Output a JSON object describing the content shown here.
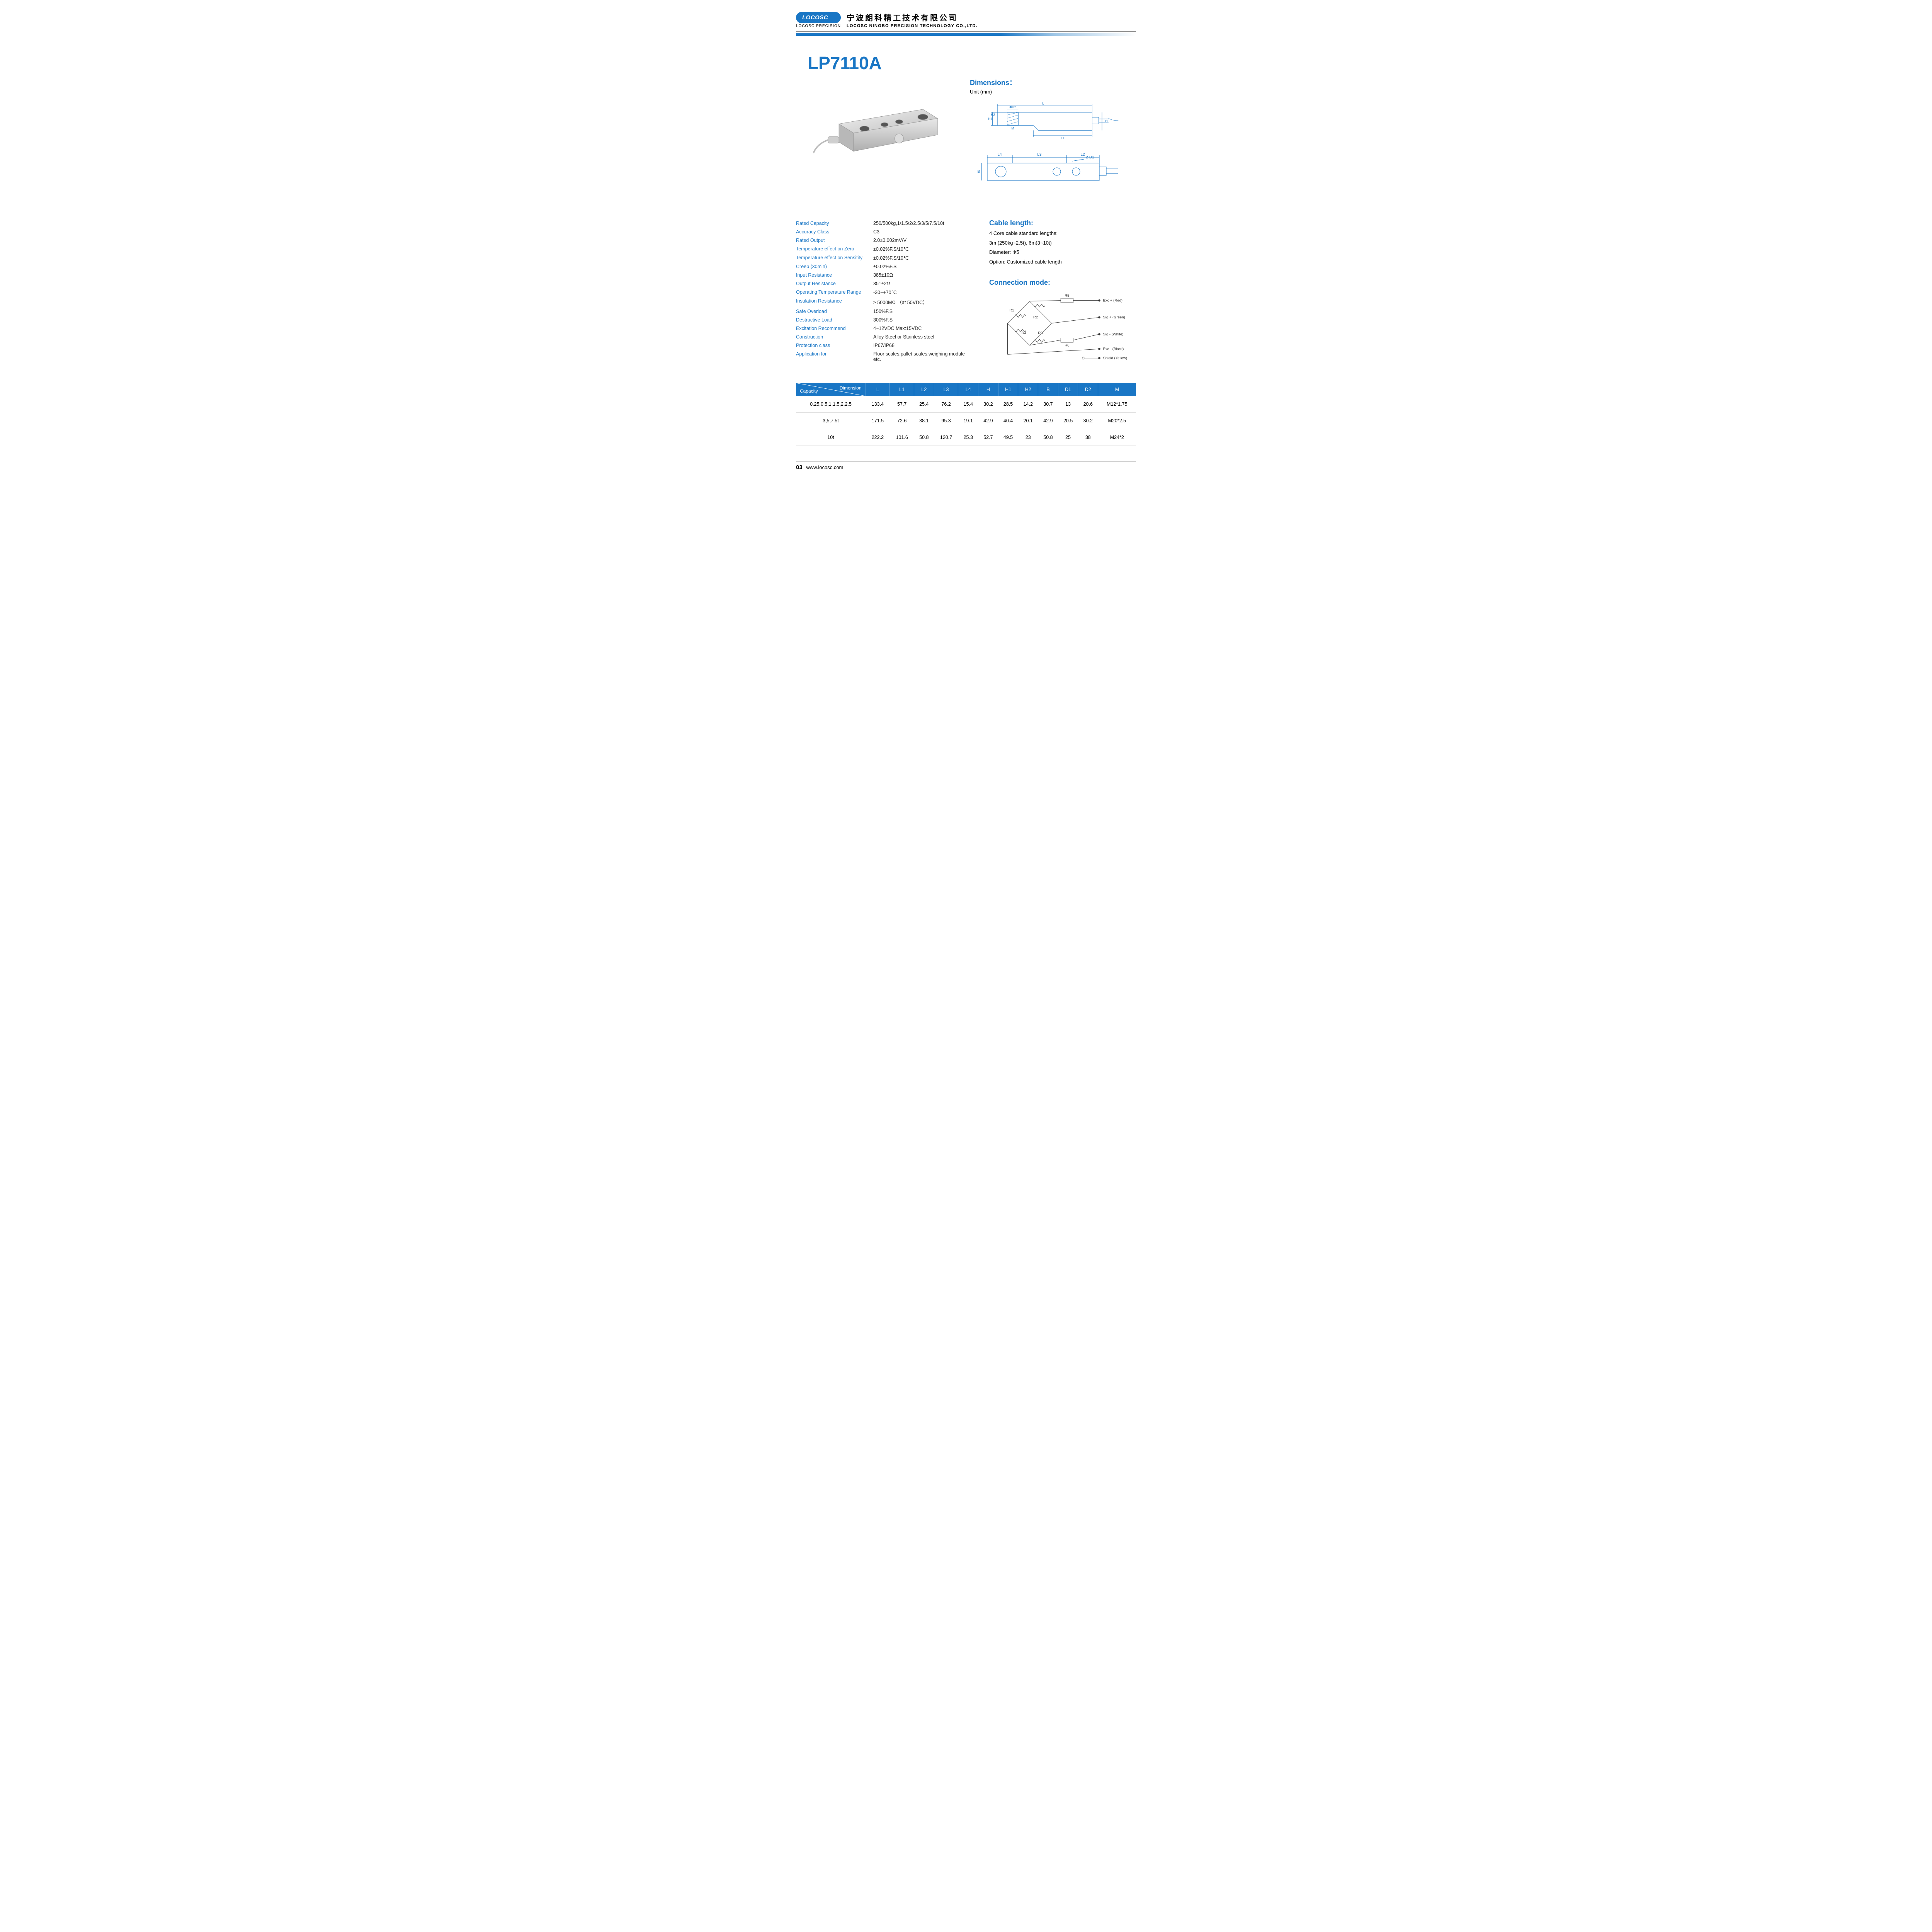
{
  "header": {
    "logo_text": "LOCOSC",
    "logo_sub": "LOCOSC PRECISION",
    "company_cn": "宁波朗科精工技术有限公司",
    "company_en": "LOCOSC NINGBO PRECISION TECHNOLOGY CO.,LTD."
  },
  "product_title": "LP7110A",
  "dimensions": {
    "heading": "Dimensions：",
    "unit": "Unit (mm)",
    "labels": {
      "L": "L",
      "L1": "L1",
      "L2": "L2",
      "L3": "L3",
      "L4": "L4",
      "H": "H",
      "H1": "H1",
      "H2": "H2",
      "B": "B",
      "D1": "2-D1",
      "D2": "ΦD2",
      "M": "M"
    }
  },
  "specs": [
    {
      "label": "Rated Capacity",
      "value": "250/500kg,1/1.5/2/2.5/3/5/7.5/10t"
    },
    {
      "label": "Accuracy Class",
      "value": "C3"
    },
    {
      "label": "Rated Output",
      "value": "2.0±0.002mV/V"
    },
    {
      "label": "Temperature effect on Zero",
      "value": "±0.02%F.S/10℃"
    },
    {
      "label": "Temperature effect on Sensitity",
      "value": "±0.02%F.S/10℃"
    },
    {
      "label": "Creep (30min)",
      "value": "±0.02%F.S"
    },
    {
      "label": "Input Resistance",
      "value": "385±10Ω"
    },
    {
      "label": "Output Resistance",
      "value": "351±2Ω"
    },
    {
      "label": "Operating Temperature Range",
      "value": "-30~+70℃"
    },
    {
      "label": "Insulation Resistance",
      "value": "≥ 5000MΩ （at 50VDC）"
    },
    {
      "label": "Safe Overload",
      "value": "150%F.S"
    },
    {
      "label": "Destructive Load",
      "value": "300%F.S"
    },
    {
      "label": "Excitation Recommend",
      "value": "4~12VDC   Max:15VDC"
    },
    {
      "label": "Construction",
      "value": "Alloy Steel or Stainless steel"
    },
    {
      "label": "Protection class",
      "value": "IP67/IP68"
    },
    {
      "label": "Application for",
      "value": "Floor scales,pallet scales,weighing module etc."
    }
  ],
  "cable": {
    "heading": "Cable length:",
    "lines": [
      "4 Core cable standard lengths:",
      "3m (250kg~2.5t), 6m(3~10t)",
      "Diameter: Φ5",
      "Option: Customized cable length"
    ]
  },
  "connection": {
    "heading": "Connection mode:",
    "r": {
      "r1": "R1",
      "r2": "R2",
      "r3": "R3",
      "r4": "R4",
      "r5": "R5",
      "r6": "R6"
    },
    "wires": [
      {
        "label": "Exc + (Red)"
      },
      {
        "label": "Sig + (Green)"
      },
      {
        "label": "Sig - (White)"
      },
      {
        "label": "Exc - (Black)"
      },
      {
        "label": "Shield  (Yellow)"
      }
    ]
  },
  "dim_table": {
    "corner": {
      "top": "Dimension",
      "bottom": "Capacity"
    },
    "columns": [
      "L",
      "L1",
      "L2",
      "L3",
      "L4",
      "H",
      "H1",
      "H2",
      "B",
      "D1",
      "D2",
      "M"
    ],
    "rows": [
      {
        "cap": "0.25,0.5,1,1.5,2,2.5",
        "cells": [
          "133.4",
          "57.7",
          "25.4",
          "76.2",
          "15.4",
          "30.2",
          "28.5",
          "14.2",
          "30.7",
          "13",
          "20.6",
          "M12*1.75"
        ]
      },
      {
        "cap": "3,5,7.5t",
        "cells": [
          "171.5",
          "72.6",
          "38.1",
          "95.3",
          "19.1",
          "42.9",
          "40.4",
          "20.1",
          "42.9",
          "20.5",
          "30.2",
          "M20*2.5"
        ]
      },
      {
        "cap": "10t",
        "cells": [
          "222.2",
          "101.6",
          "50.8",
          "120.7",
          "25.3",
          "52.7",
          "49.5",
          "23",
          "50.8",
          "25",
          "38",
          "M24*2"
        ]
      }
    ]
  },
  "footer": {
    "page": "03",
    "url": "www.locosc.com"
  },
  "colors": {
    "brand": "#1976c5",
    "text": "#222"
  }
}
